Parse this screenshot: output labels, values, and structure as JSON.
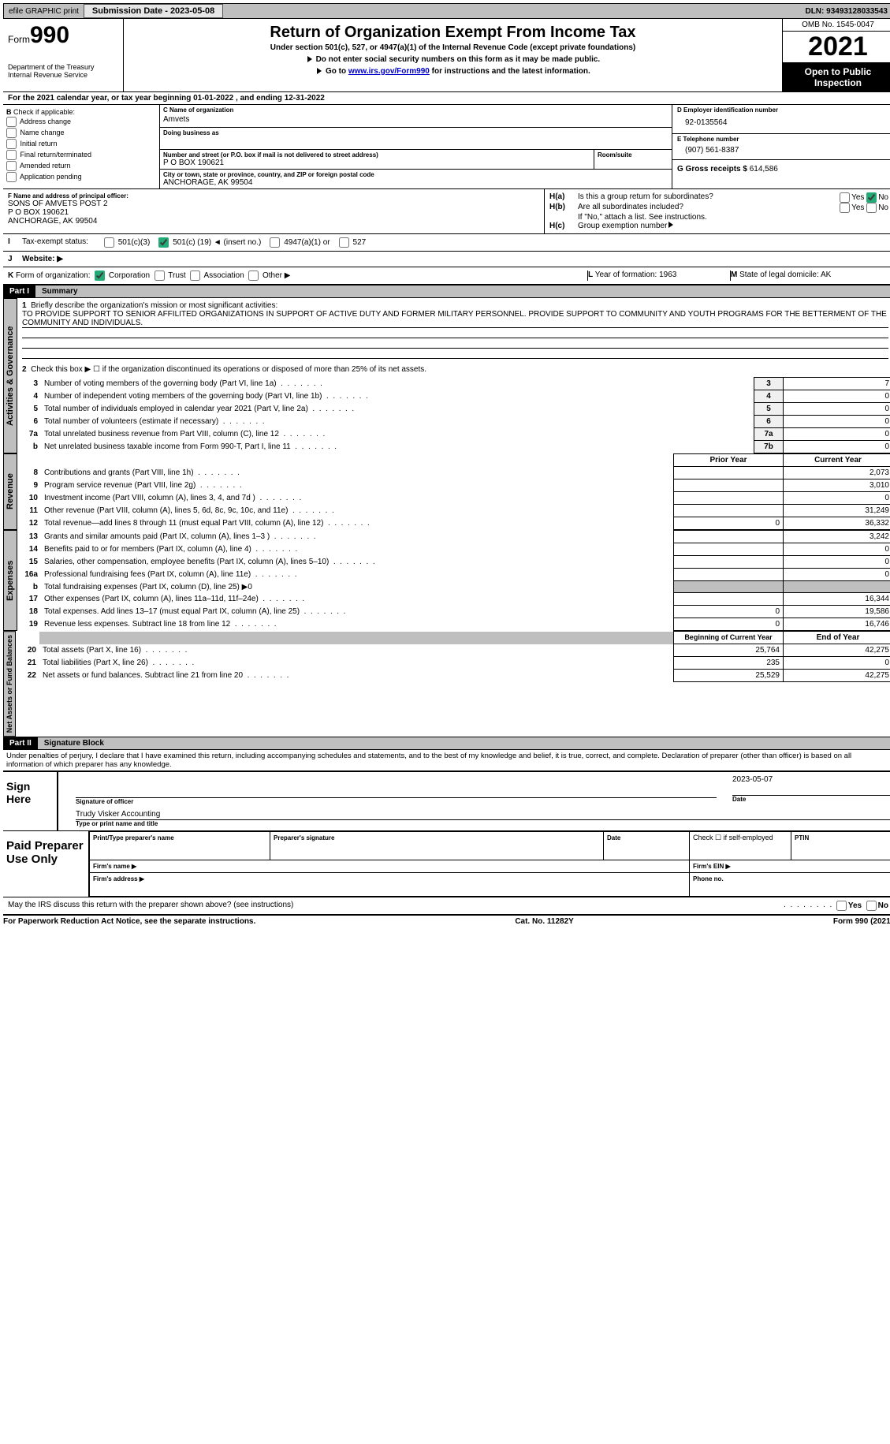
{
  "topbar": {
    "efile": "efile GRAPHIC print",
    "submission_label": "Submission Date - 2023-05-08",
    "dln": "DLN: 93493128033543"
  },
  "header": {
    "form_word": "Form",
    "form_num": "990",
    "title": "Return of Organization Exempt From Income Tax",
    "subtitle": "Under section 501(c), 527, or 4947(a)(1) of the Internal Revenue Code (except private foundations)",
    "note1": "Do not enter social security numbers on this form as it may be made public.",
    "note2_pre": "Go to ",
    "note2_link": "www.irs.gov/Form990",
    "note2_post": " for instructions and the latest information.",
    "dept": "Department of the Treasury\nInternal Revenue Service",
    "omb": "OMB No. 1545-0047",
    "year": "2021",
    "inspection": "Open to Public Inspection"
  },
  "lineA": "For the 2021 calendar year, or tax year beginning 01-01-2022    , and ending 12-31-2022",
  "checkboxes": {
    "label": "Check if applicable:",
    "addr": "Address change",
    "name": "Name change",
    "initial": "Initial return",
    "final": "Final return/terminated",
    "amended": "Amended return",
    "app": "Application pending"
  },
  "blockC": {
    "label": "C Name of organization",
    "name": "Amvets",
    "dba_label": "Doing business as",
    "addr_label": "Number and street (or P.O. box if mail is not delivered to street address)",
    "room_label": "Room/suite",
    "addr": "P O BOX 190621",
    "city_label": "City or town, state or province, country, and ZIP or foreign postal code",
    "city": "ANCHORAGE, AK   99504"
  },
  "blockD": {
    "label": "D Employer identification number",
    "val": "92-0135564"
  },
  "blockE": {
    "label": "E Telephone number",
    "val": "(907) 561-8387"
  },
  "blockG": {
    "label": "G Gross receipts $",
    "val": "614,586"
  },
  "blockF": {
    "label": "F  Name and address of principal officer:",
    "l1": "SONS OF AMVETS POST 2",
    "l2": "P O BOX 190621",
    "l3": "ANCHORAGE, AK   99504"
  },
  "blockH": {
    "a_label": "Is this a group return for subordinates?",
    "a_no_checked": true,
    "b_label": "Are all subordinates included?",
    "b_note": "If \"No,\" attach a list. See instructions.",
    "c_label": "Group exemption number"
  },
  "blockI": {
    "label": "Tax-exempt status:",
    "c19_checked": true,
    "opts": {
      "a": "501(c)(3)",
      "b_pre": "501(c) (",
      "b_num": "19",
      "b_post": ") ◄ (insert no.)",
      "c": "4947(a)(1) or",
      "d": "527"
    }
  },
  "blockJ": "Website: ▶",
  "blockK": {
    "label": "Form of organization:",
    "corp": "Corporation",
    "trust": "Trust",
    "assoc": "Association",
    "other": "Other ▶",
    "corp_checked": true
  },
  "blockL": {
    "label": "Year of formation:",
    "val": "1963"
  },
  "blockM": {
    "label": "State of legal domicile:",
    "val": "AK"
  },
  "part1": {
    "hdr": "Part I",
    "title": "Summary",
    "l1_label": "Briefly describe the organization's mission or most significant activities:",
    "l1_text": "TO PROVIDE SUPPORT TO SENIOR AFFILITED ORGANIZATIONS IN SUPPORT OF ACTIVE DUTY AND FORMER MILITARY PERSONNEL. PROVIDE SUPPORT TO COMMUNITY AND YOUTH PROGRAMS FOR THE BETTERMENT OF THE COMMUNITY AND INDIVIDUALS.",
    "l2": "Check this box ▶ ☐  if the organization discontinued its operations or disposed of more than 25% of its net assets.",
    "governance_side": "Activities & Governance",
    "revenue_side": "Revenue",
    "expenses_side": "Expenses",
    "netassets_side": "Net Assets or Fund Balances",
    "lines_gov": [
      {
        "n": "3",
        "d": "Number of voting members of the governing body (Part VI, line 1a)",
        "box": "3",
        "v": "7"
      },
      {
        "n": "4",
        "d": "Number of independent voting members of the governing body (Part VI, line 1b)",
        "box": "4",
        "v": "0"
      },
      {
        "n": "5",
        "d": "Total number of individuals employed in calendar year 2021 (Part V, line 2a)",
        "box": "5",
        "v": "0"
      },
      {
        "n": "6",
        "d": "Total number of volunteers (estimate if necessary)",
        "box": "6",
        "v": "0"
      },
      {
        "n": "7a",
        "d": "Total unrelated business revenue from Part VIII, column (C), line 12",
        "box": "7a",
        "v": "0"
      },
      {
        "n": "b",
        "d": "Net unrelated business taxable income from Form 990-T, Part I, line 11",
        "box": "7b",
        "v": "0"
      }
    ],
    "col_prior": "Prior Year",
    "col_current": "Current Year",
    "lines_rev": [
      {
        "n": "8",
        "d": "Contributions and grants (Part VIII, line 1h)",
        "p": "",
        "c": "2,073"
      },
      {
        "n": "9",
        "d": "Program service revenue (Part VIII, line 2g)",
        "p": "",
        "c": "3,010"
      },
      {
        "n": "10",
        "d": "Investment income (Part VIII, column (A), lines 3, 4, and 7d )",
        "p": "",
        "c": "0"
      },
      {
        "n": "11",
        "d": "Other revenue (Part VIII, column (A), lines 5, 6d, 8c, 9c, 10c, and 11e)",
        "p": "",
        "c": "31,249"
      },
      {
        "n": "12",
        "d": "Total revenue—add lines 8 through 11 (must equal Part VIII, column (A), line 12)",
        "p": "0",
        "c": "36,332"
      }
    ],
    "lines_exp": [
      {
        "n": "13",
        "d": "Grants and similar amounts paid (Part IX, column (A), lines 1–3 )",
        "p": "",
        "c": "3,242"
      },
      {
        "n": "14",
        "d": "Benefits paid to or for members (Part IX, column (A), line 4)",
        "p": "",
        "c": "0"
      },
      {
        "n": "15",
        "d": "Salaries, other compensation, employee benefits (Part IX, column (A), lines 5–10)",
        "p": "",
        "c": "0"
      },
      {
        "n": "16a",
        "d": "Professional fundraising fees (Part IX, column (A), line 11e)",
        "p": "",
        "c": "0"
      },
      {
        "n": "b",
        "d": "Total fundraising expenses (Part IX, column (D), line 25) ▶0",
        "shadep": true,
        "shadec": true
      },
      {
        "n": "17",
        "d": "Other expenses (Part IX, column (A), lines 11a–11d, 11f–24e)",
        "p": "",
        "c": "16,344"
      },
      {
        "n": "18",
        "d": "Total expenses. Add lines 13–17 (must equal Part IX, column (A), line 25)",
        "p": "0",
        "c": "19,586"
      },
      {
        "n": "19",
        "d": "Revenue less expenses. Subtract line 18 from line 12",
        "p": "0",
        "c": "16,746"
      }
    ],
    "col_begin": "Beginning of Current Year",
    "col_end": "End of Year",
    "lines_na": [
      {
        "n": "20",
        "d": "Total assets (Part X, line 16)",
        "p": "25,764",
        "c": "42,275"
      },
      {
        "n": "21",
        "d": "Total liabilities (Part X, line 26)",
        "p": "235",
        "c": "0"
      },
      {
        "n": "22",
        "d": "Net assets or fund balances. Subtract line 21 from line 20",
        "p": "25,529",
        "c": "42,275"
      }
    ]
  },
  "part2": {
    "hdr": "Part II",
    "title": "Signature Block",
    "decl": "Under penalties of perjury, I declare that I have examined this return, including accompanying schedules and statements, and to the best of my knowledge and belief, it is true, correct, and complete. Declaration of preparer (other than officer) is based on all information of which preparer has any knowledge.",
    "sign_here": "Sign Here",
    "sig_label": "Signature of officer",
    "date_label": "Date",
    "date_val": "2023-05-07",
    "name_val": "Trudy Visker  Accounting",
    "name_label": "Type or print name and title",
    "paid": "Paid Preparer Use Only",
    "prep_name": "Print/Type preparer's name",
    "prep_sig": "Preparer's signature",
    "prep_date": "Date",
    "self_emp": "Check ☐ if self-employed",
    "ptin": "PTIN",
    "firm_name": "Firm's name   ▶",
    "firm_ein": "Firm's EIN ▶",
    "firm_addr": "Firm's address ▶",
    "phone": "Phone no.",
    "discuss": "May the IRS discuss this return with the preparer shown above? (see instructions)",
    "yes": "Yes",
    "no": "No"
  },
  "footer": {
    "left": "For Paperwork Reduction Act Notice, see the separate instructions.",
    "mid": "Cat. No. 11282Y",
    "right": "Form 990 (2021)"
  }
}
